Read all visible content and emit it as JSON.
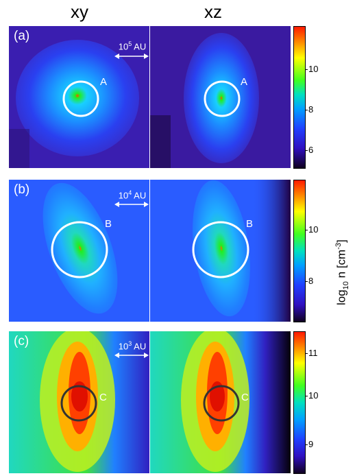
{
  "columns": {
    "left": "xy",
    "right": "xz"
  },
  "rows": [
    {
      "label": "(a)",
      "scale_base": "10",
      "scale_exp": "5",
      "scale_unit": "AU",
      "circle_label": "A",
      "colorbar_ticks": [
        "10",
        "8",
        "6"
      ]
    },
    {
      "label": "(b)",
      "scale_base": "10",
      "scale_exp": "4",
      "scale_unit": "AU",
      "circle_label": "B",
      "colorbar_ticks": [
        "10",
        "8"
      ]
    },
    {
      "label": "(c)",
      "scale_base": "10",
      "scale_exp": "3",
      "scale_unit": "AU",
      "circle_label": "C",
      "colorbar_ticks": [
        "11",
        "10",
        "9"
      ]
    }
  ],
  "colorbar_title": {
    "prefix": "log",
    "sub": "10",
    "mid": " n [cm",
    "sup": "-3",
    "suffix": "]"
  },
  "colors": {
    "circle_ab": "#ffffff",
    "circle_c": "#333333"
  }
}
